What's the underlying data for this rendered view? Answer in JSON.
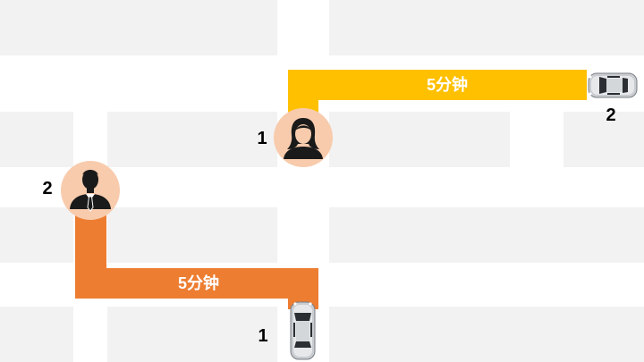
{
  "map": {
    "block_color": "#f2f2f2",
    "road_color": "#ffffff"
  },
  "routes": {
    "top": {
      "label": "5分钟",
      "color": "#ffc000"
    },
    "bottom": {
      "label": "5分钟",
      "color": "#ed7d31"
    }
  },
  "markers": {
    "woman_number": "1",
    "man_number": "2",
    "car_top_number": "2",
    "car_bottom_number": "1"
  },
  "icons": {
    "passenger_woman": "woman-icon",
    "passenger_man": "man-icon",
    "car_top": "car-icon",
    "car_bottom": "car-icon"
  },
  "avatar_bg": "#f8cbad"
}
